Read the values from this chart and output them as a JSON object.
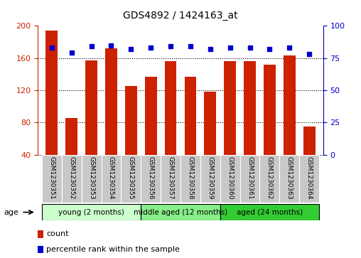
{
  "title": "GDS4892 / 1424163_at",
  "samples": [
    "GSM1230351",
    "GSM1230352",
    "GSM1230353",
    "GSM1230354",
    "GSM1230355",
    "GSM1230356",
    "GSM1230357",
    "GSM1230358",
    "GSM1230359",
    "GSM1230360",
    "GSM1230361",
    "GSM1230362",
    "GSM1230363",
    "GSM1230364"
  ],
  "counts": [
    194,
    86,
    157,
    172,
    125,
    137,
    156,
    137,
    118,
    156,
    156,
    152,
    163,
    75
  ],
  "percentiles": [
    83,
    79,
    84,
    85,
    82,
    83,
    84,
    84,
    82,
    83,
    83,
    82,
    83,
    78
  ],
  "ylim_left": [
    40,
    200
  ],
  "ylim_right": [
    0,
    100
  ],
  "yticks_left": [
    40,
    80,
    120,
    160,
    200
  ],
  "yticks_right": [
    0,
    25,
    50,
    75,
    100
  ],
  "bar_color": "#cc2200",
  "dot_color": "#0000cc",
  "background_color": "#ffffff",
  "grid_color": "#000000",
  "groups": [
    {
      "label": "young (2 months)",
      "start": 0,
      "end": 5,
      "color": "#ccffcc"
    },
    {
      "label": "middle aged (12 months)",
      "start": 5,
      "end": 9,
      "color": "#88ee88"
    },
    {
      "label": "aged (24 months)",
      "start": 9,
      "end": 14,
      "color": "#33cc33"
    }
  ],
  "xlabel_age": "age",
  "legend_count": "count",
  "legend_percentile": "percentile rank within the sample",
  "tick_bg_color": "#c8c8c8",
  "spine_color": "#888888"
}
